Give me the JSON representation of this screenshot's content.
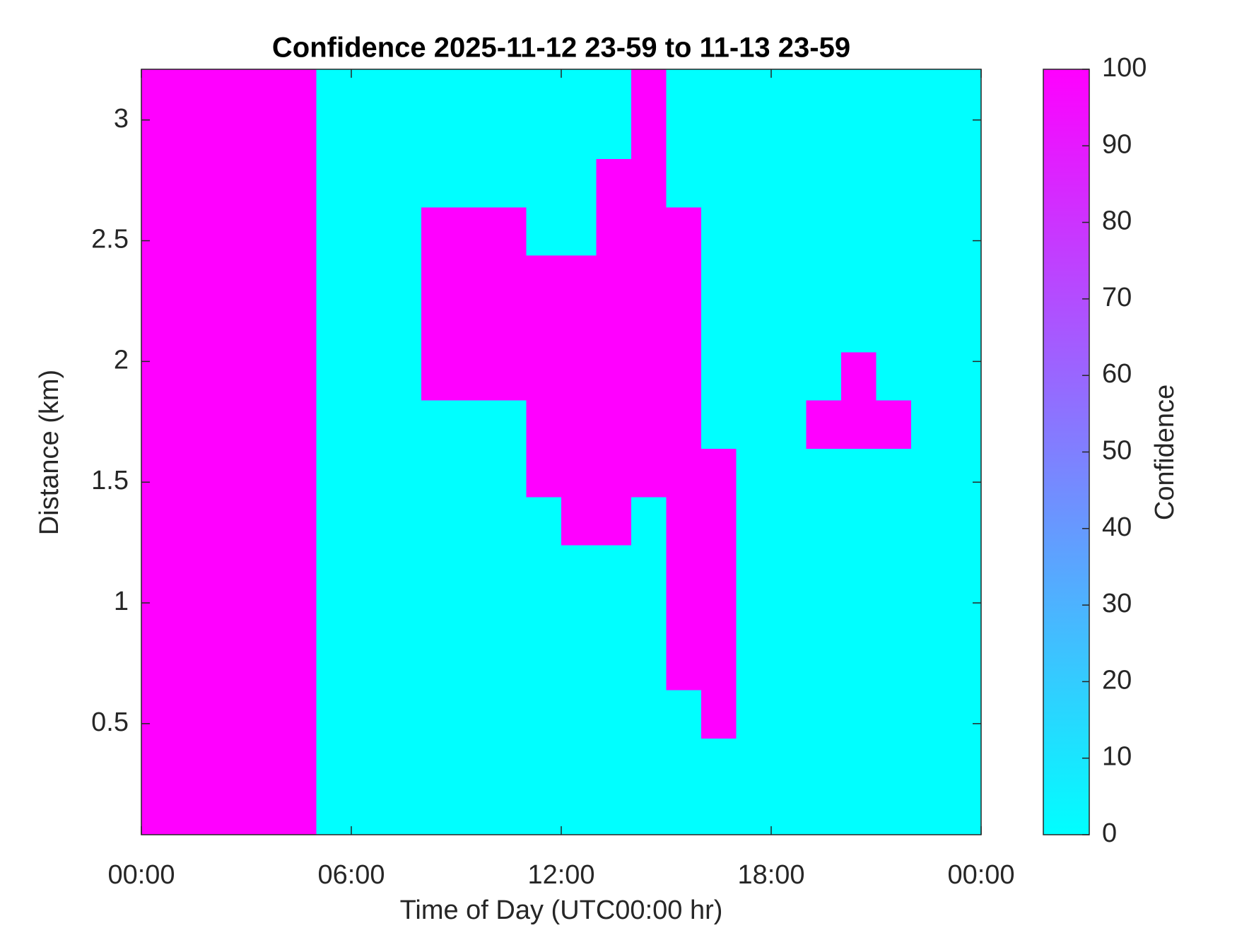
{
  "chart_data": {
    "type": "heatmap",
    "title": "Confidence 2025-11-12 23-59 to 11-13 23-59",
    "xlabel": "Time of Day (UTC00:00 hr)",
    "ylabel": "Distance (km)",
    "x": [
      0.5,
      1.5,
      2.5,
      3.5,
      4.5,
      5.5,
      6.5,
      7.5,
      8.5,
      9.5,
      10.5,
      11.5,
      12.5,
      13.5,
      14.5,
      15.5,
      16.5,
      17.5,
      18.5,
      19.5,
      20.5,
      21.5,
      22.5,
      23.5
    ],
    "y": [
      0.14,
      0.34,
      0.54,
      0.74,
      0.94,
      1.14,
      1.34,
      1.54,
      1.74,
      1.94,
      2.14,
      2.34,
      2.54,
      2.74,
      2.94,
      3.14
    ],
    "z": [
      [
        100,
        100,
        100,
        100,
        100,
        0,
        0,
        0,
        0,
        0,
        0,
        0,
        0,
        0,
        0,
        0,
        0,
        0,
        0,
        0,
        0,
        0,
        0,
        0
      ],
      [
        100,
        100,
        100,
        100,
        100,
        0,
        0,
        0,
        0,
        0,
        0,
        0,
        0,
        0,
        0,
        0,
        0,
        0,
        0,
        0,
        0,
        0,
        0,
        0
      ],
      [
        100,
        100,
        100,
        100,
        100,
        0,
        0,
        0,
        0,
        0,
        0,
        0,
        0,
        0,
        0,
        0,
        100,
        0,
        0,
        0,
        0,
        0,
        0,
        0
      ],
      [
        100,
        100,
        100,
        100,
        100,
        0,
        0,
        0,
        0,
        0,
        0,
        0,
        0,
        0,
        0,
        100,
        100,
        0,
        0,
        0,
        0,
        0,
        0,
        0
      ],
      [
        100,
        100,
        100,
        100,
        100,
        0,
        0,
        0,
        0,
        0,
        0,
        0,
        0,
        0,
        0,
        100,
        100,
        0,
        0,
        0,
        0,
        0,
        0,
        0
      ],
      [
        100,
        100,
        100,
        100,
        100,
        0,
        0,
        0,
        0,
        0,
        0,
        0,
        0,
        0,
        0,
        100,
        100,
        0,
        0,
        0,
        0,
        0,
        0,
        0
      ],
      [
        100,
        100,
        100,
        100,
        100,
        0,
        0,
        0,
        0,
        0,
        0,
        0,
        100,
        100,
        0,
        100,
        100,
        0,
        0,
        0,
        0,
        0,
        0,
        0
      ],
      [
        100,
        100,
        100,
        100,
        100,
        0,
        0,
        0,
        0,
        0,
        0,
        100,
        100,
        100,
        100,
        100,
        100,
        0,
        0,
        0,
        0,
        0,
        0,
        0
      ],
      [
        100,
        100,
        100,
        100,
        100,
        0,
        0,
        0,
        0,
        0,
        0,
        100,
        100,
        100,
        100,
        100,
        0,
        0,
        0,
        100,
        100,
        100,
        0,
        0
      ],
      [
        100,
        100,
        100,
        100,
        100,
        0,
        0,
        0,
        100,
        100,
        100,
        100,
        100,
        100,
        100,
        100,
        0,
        0,
        0,
        0,
        100,
        0,
        0,
        0
      ],
      [
        100,
        100,
        100,
        100,
        100,
        0,
        0,
        0,
        100,
        100,
        100,
        100,
        100,
        100,
        100,
        100,
        0,
        0,
        0,
        0,
        0,
        0,
        0,
        0
      ],
      [
        100,
        100,
        100,
        100,
        100,
        0,
        0,
        0,
        100,
        100,
        100,
        100,
        100,
        100,
        100,
        100,
        0,
        0,
        0,
        0,
        0,
        0,
        0,
        0
      ],
      [
        100,
        100,
        100,
        100,
        100,
        0,
        0,
        0,
        100,
        100,
        100,
        0,
        0,
        100,
        100,
        100,
        0,
        0,
        0,
        0,
        0,
        0,
        0,
        0
      ],
      [
        100,
        100,
        100,
        100,
        100,
        0,
        0,
        0,
        0,
        0,
        0,
        0,
        0,
        100,
        100,
        0,
        0,
        0,
        0,
        0,
        0,
        0,
        0,
        0
      ],
      [
        100,
        100,
        100,
        100,
        100,
        0,
        0,
        0,
        0,
        0,
        0,
        0,
        0,
        0,
        100,
        0,
        0,
        0,
        0,
        0,
        0,
        0,
        0,
        0
      ],
      [
        100,
        100,
        100,
        100,
        100,
        0,
        0,
        0,
        0,
        0,
        0,
        0,
        0,
        0,
        100,
        0,
        0,
        0,
        0,
        0,
        0,
        0,
        0,
        0
      ]
    ],
    "xlim": [
      0,
      24
    ],
    "xticks": [
      {
        "value": 0,
        "label": "00:00"
      },
      {
        "value": 6,
        "label": "06:00"
      },
      {
        "value": 12,
        "label": "12:00"
      },
      {
        "value": 18,
        "label": "18:00"
      },
      {
        "value": 24,
        "label": "00:00"
      }
    ],
    "ylim": [
      0.04,
      3.21
    ],
    "yticks": [
      0.5,
      1,
      1.5,
      2,
      2.5,
      3
    ],
    "colorbar": {
      "label": "Confidence",
      "lim": [
        0,
        100
      ],
      "ticks": [
        0,
        10,
        20,
        30,
        40,
        50,
        60,
        70,
        80,
        90,
        100
      ],
      "colors": [
        "#00ffff",
        "#ff00ff"
      ]
    }
  }
}
